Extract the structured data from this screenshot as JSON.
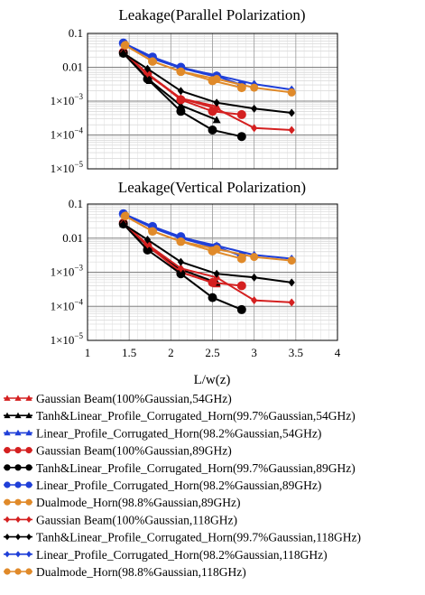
{
  "chart_data": [
    {
      "type": "line",
      "title": "Leakage(Parallel Polarization)",
      "x_scale": "linear",
      "y_scale": "log",
      "xlim": [
        1,
        4
      ],
      "ylim": [
        1e-05,
        0.1
      ],
      "x_ticks": [],
      "y_ticks": [
        {
          "value": 0.1,
          "mant": "0.1",
          "exp": ""
        },
        {
          "value": 0.01,
          "mant": "0.01",
          "exp": ""
        },
        {
          "value": 0.001,
          "mant": "1×10",
          "exp": "−3"
        },
        {
          "value": 0.0001,
          "mant": "1×10",
          "exp": "−4"
        },
        {
          "value": 1e-05,
          "mant": "1×10",
          "exp": "−5"
        }
      ],
      "grid": true,
      "series": [
        {
          "color": "#d42020",
          "marker": "triangle",
          "x": [
            1.43,
            1.72,
            2.12,
            2.55
          ],
          "y": [
            0.028,
            0.006,
            0.0012,
            0.0007
          ]
        },
        {
          "color": "#000000",
          "marker": "triangle",
          "x": [
            1.43,
            1.75,
            2.12,
            2.55
          ],
          "y": [
            0.026,
            0.004,
            0.00075,
            0.00028
          ]
        },
        {
          "color": "#1f3fd8",
          "marker": "triangle",
          "x": [
            1.43,
            1.78,
            2.12,
            2.55
          ],
          "y": [
            0.052,
            0.018,
            0.0095,
            0.0052
          ]
        },
        {
          "color": "#d42020",
          "marker": "circle",
          "x": [
            1.43,
            1.72,
            2.12,
            2.5,
            2.85
          ],
          "y": [
            0.028,
            0.0065,
            0.0011,
            0.0005,
            0.0004
          ]
        },
        {
          "color": "#000000",
          "marker": "circle",
          "x": [
            1.43,
            1.72,
            2.12,
            2.5,
            2.85
          ],
          "y": [
            0.026,
            0.0045,
            0.0005,
            0.00014,
            9e-05
          ]
        },
        {
          "color": "#1f3fd8",
          "marker": "circle",
          "x": [
            1.43,
            1.78,
            2.12,
            2.55,
            2.85
          ],
          "y": [
            0.052,
            0.02,
            0.01,
            0.0055,
            0.003
          ]
        },
        {
          "color": "#e08a2a",
          "marker": "circle",
          "x": [
            1.45,
            1.78,
            2.12,
            2.5,
            2.85
          ],
          "y": [
            0.045,
            0.015,
            0.0075,
            0.004,
            0.0025
          ]
        },
        {
          "color": "#d42020",
          "marker": "diamond",
          "x": [
            1.43,
            1.72,
            2.12,
            2.55,
            3.0,
            3.45
          ],
          "y": [
            0.028,
            0.0065,
            0.0012,
            0.0006,
            0.00016,
            0.00014
          ]
        },
        {
          "color": "#000000",
          "marker": "diamond",
          "x": [
            1.43,
            1.72,
            2.12,
            2.55,
            3.0,
            3.45
          ],
          "y": [
            0.026,
            0.009,
            0.002,
            0.0009,
            0.0006,
            0.00045
          ]
        },
        {
          "color": "#1f3fd8",
          "marker": "diamond",
          "x": [
            1.43,
            1.78,
            2.12,
            2.55,
            3.0,
            3.45
          ],
          "y": [
            0.052,
            0.02,
            0.0095,
            0.0058,
            0.0032,
            0.0022
          ]
        },
        {
          "color": "#e08a2a",
          "marker": "circle",
          "x": [
            1.45,
            1.78,
            2.12,
            2.55,
            3.0,
            3.45
          ],
          "y": [
            0.045,
            0.015,
            0.0075,
            0.0045,
            0.0025,
            0.0018
          ]
        }
      ]
    },
    {
      "type": "line",
      "title": "Leakage(Vertical Polarization)",
      "x_scale": "linear",
      "y_scale": "log",
      "xlim": [
        1,
        4
      ],
      "ylim": [
        1e-05,
        0.1
      ],
      "x_ticks": [
        "1",
        "1.5",
        "2",
        "2.5",
        "3",
        "3.5",
        "4"
      ],
      "y_ticks": [
        {
          "value": 0.1,
          "mant": "0.1",
          "exp": ""
        },
        {
          "value": 0.01,
          "mant": "0.01",
          "exp": ""
        },
        {
          "value": 0.001,
          "mant": "1×10",
          "exp": "−3"
        },
        {
          "value": 0.0001,
          "mant": "1×10",
          "exp": "−4"
        },
        {
          "value": 1e-05,
          "mant": "1×10",
          "exp": "−5"
        }
      ],
      "xlabel": "L/w(z)",
      "grid": true,
      "series": [
        {
          "color": "#d42020",
          "marker": "triangle",
          "x": [
            1.43,
            1.72,
            2.12,
            2.55
          ],
          "y": [
            0.028,
            0.006,
            0.001,
            0.00045
          ]
        },
        {
          "color": "#000000",
          "marker": "triangle",
          "x": [
            1.43,
            1.75,
            2.12,
            2.55
          ],
          "y": [
            0.026,
            0.005,
            0.0012,
            0.0005
          ]
        },
        {
          "color": "#1f3fd8",
          "marker": "triangle",
          "x": [
            1.43,
            1.78,
            2.12,
            2.55
          ],
          "y": [
            0.052,
            0.02,
            0.01,
            0.0052
          ]
        },
        {
          "color": "#d42020",
          "marker": "circle",
          "x": [
            1.43,
            1.72,
            2.12,
            2.5,
            2.85
          ],
          "y": [
            0.028,
            0.006,
            0.001,
            0.0005,
            0.0004
          ]
        },
        {
          "color": "#000000",
          "marker": "circle",
          "x": [
            1.43,
            1.72,
            2.12,
            2.5,
            2.85
          ],
          "y": [
            0.026,
            0.0045,
            0.0009,
            0.00018,
            8e-05
          ]
        },
        {
          "color": "#1f3fd8",
          "marker": "circle",
          "x": [
            1.43,
            1.78,
            2.12,
            2.55,
            2.85
          ],
          "y": [
            0.052,
            0.022,
            0.011,
            0.0055,
            0.003
          ]
        },
        {
          "color": "#e08a2a",
          "marker": "circle",
          "x": [
            1.45,
            1.78,
            2.12,
            2.5,
            2.85
          ],
          "y": [
            0.045,
            0.016,
            0.008,
            0.0042,
            0.0025
          ]
        },
        {
          "color": "#d42020",
          "marker": "diamond",
          "x": [
            1.43,
            1.72,
            2.12,
            2.55,
            3.0,
            3.45
          ],
          "y": [
            0.028,
            0.0065,
            0.0013,
            0.0007,
            0.00015,
            0.00013
          ]
        },
        {
          "color": "#000000",
          "marker": "diamond",
          "x": [
            1.43,
            1.72,
            2.12,
            2.55,
            3.0,
            3.45
          ],
          "y": [
            0.026,
            0.009,
            0.002,
            0.0009,
            0.0007,
            0.0005
          ]
        },
        {
          "color": "#1f3fd8",
          "marker": "diamond",
          "x": [
            1.43,
            1.78,
            2.12,
            2.55,
            3.0,
            3.45
          ],
          "y": [
            0.052,
            0.022,
            0.0105,
            0.006,
            0.0032,
            0.0025
          ]
        },
        {
          "color": "#e08a2a",
          "marker": "circle",
          "x": [
            1.45,
            1.78,
            2.12,
            2.55,
            3.0,
            3.45
          ],
          "y": [
            0.045,
            0.016,
            0.008,
            0.0048,
            0.0028,
            0.0022
          ]
        }
      ]
    }
  ],
  "legend": [
    {
      "text": "Gaussian Beam(100%Gaussian,54GHz)",
      "color": "#d42020",
      "marker": "triangle"
    },
    {
      "text": "Tanh&Linear_Profile_Corrugated_Horn(99.7%Gaussian,54GHz)",
      "color": "#000000",
      "marker": "triangle"
    },
    {
      "text": "Linear_Profile_Corrugated_Horn(98.2%Gaussian,54GHz)",
      "color": "#1f3fd8",
      "marker": "triangle"
    },
    {
      "text": "Gaussian Beam(100%Gaussian,89GHz)",
      "color": "#d42020",
      "marker": "circle"
    },
    {
      "text": "Tanh&Linear_Profile_Corrugated_Horn(99.7%Gaussian,89GHz)",
      "color": "#000000",
      "marker": "circle"
    },
    {
      "text": "Linear_Profile_Corrugated_Horn(98.2%Gaussian,89GHz)",
      "color": "#1f3fd8",
      "marker": "circle"
    },
    {
      "text": "Dualmode_Horn(98.8%Gaussian,89GHz)",
      "color": "#e08a2a",
      "marker": "circle"
    },
    {
      "text": "Gaussian Beam(100%Gaussian,118GHz)",
      "color": "#d42020",
      "marker": "diamond"
    },
    {
      "text": "Tanh&Linear_Profile_Corrugated_Horn(99.7%Gaussian,118GHz)",
      "color": "#000000",
      "marker": "diamond"
    },
    {
      "text": "Linear_Profile_Corrugated_Horn(98.2%Gaussian,118GHz)",
      "color": "#1f3fd8",
      "marker": "diamond"
    },
    {
      "text": "Dualmode_Horn(98.8%Gaussian,118GHz)",
      "color": "#e08a2a",
      "marker": "circle"
    }
  ]
}
